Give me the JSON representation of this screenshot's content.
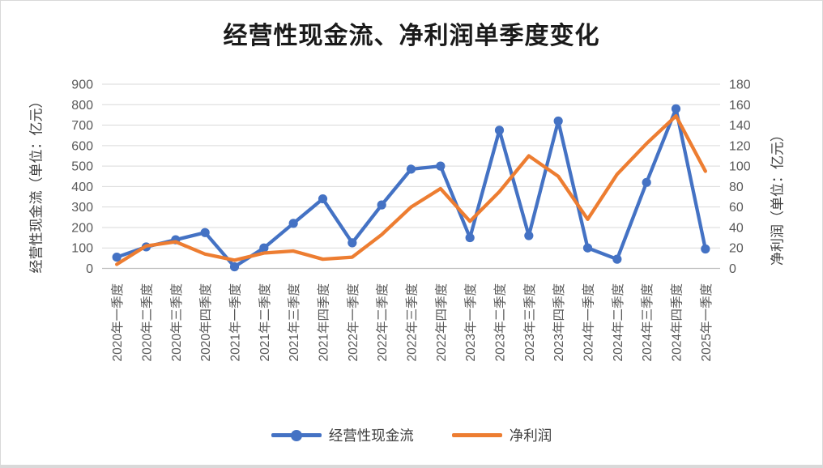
{
  "frame": {
    "background": "#ffffff",
    "border_color": "#d9d9d9"
  },
  "chart_data": {
    "type": "line",
    "title": "经营性现金流、净利润单季度变化",
    "categories": [
      "2020年一季度",
      "2020年二季度",
      "2020年三季度",
      "2020年四季度",
      "2021年一季度",
      "2021年二季度",
      "2021年三季度",
      "2021年四季度",
      "2022年一季度",
      "2022年二季度",
      "2022年三季度",
      "2022年四季度",
      "2023年一季度",
      "2023年二季度",
      "2023年三季度",
      "2023年四季度",
      "2024年一季度",
      "2024年二季度",
      "2024年三季度",
      "2024年四季度",
      "2025年一季度"
    ],
    "left_axis": {
      "label": "经营性现金流（单位：亿元）",
      "min": 0,
      "max": 900,
      "step": 100,
      "ticks": [
        0,
        100,
        200,
        300,
        400,
        500,
        600,
        700,
        800,
        900
      ]
    },
    "right_axis": {
      "label": "净利润（单位：亿元）",
      "min": 0,
      "max": 180,
      "step": 20,
      "ticks": [
        0,
        20,
        40,
        60,
        80,
        100,
        120,
        140,
        160,
        180
      ]
    },
    "series": [
      {
        "key": "operating-cashflow",
        "name": "经营性现金流",
        "axis": "left",
        "color": "#4472C4",
        "marker": "circle",
        "values": [
          55,
          105,
          140,
          175,
          8,
          100,
          220,
          340,
          125,
          310,
          485,
          500,
          150,
          675,
          160,
          720,
          100,
          45,
          420,
          780,
          95
        ]
      },
      {
        "key": "net-profit",
        "name": "净利润",
        "axis": "right",
        "color": "#ED7D31",
        "marker": "none",
        "values": [
          4,
          22,
          26,
          14,
          8,
          15,
          17,
          9,
          11,
          33,
          60,
          78,
          46,
          75,
          110,
          90,
          48,
          92,
          122,
          149,
          95
        ]
      }
    ],
    "grid": true,
    "legend_position": "bottom",
    "styles": {
      "gridline_color": "#D9D9D9",
      "axis_line_color": "#BFBFBF",
      "tick_text_color": "#595959",
      "title_color": "#1a1a1a",
      "label_text_color": "#404040"
    }
  }
}
